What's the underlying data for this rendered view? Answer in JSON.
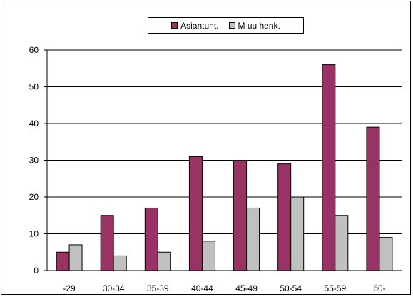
{
  "chart_data": {
    "type": "bar",
    "categories": [
      "-29",
      "30-34",
      "35-39",
      "40-44",
      "45-49",
      "50-54",
      "55-59",
      "60-"
    ],
    "series": [
      {
        "name": "Asiantunt.",
        "color": "#993366",
        "values": [
          5,
          15,
          17,
          31,
          30,
          29,
          56,
          39
        ]
      },
      {
        "name": "M uu henk.",
        "color": "#c0c0c0",
        "values": [
          7,
          4,
          5,
          8,
          17,
          20,
          15,
          9
        ]
      }
    ],
    "yticks": [
      0,
      10,
      20,
      30,
      40,
      50,
      60
    ],
    "ylim": [
      0,
      60
    ],
    "grid": true,
    "legend_position": "top"
  }
}
